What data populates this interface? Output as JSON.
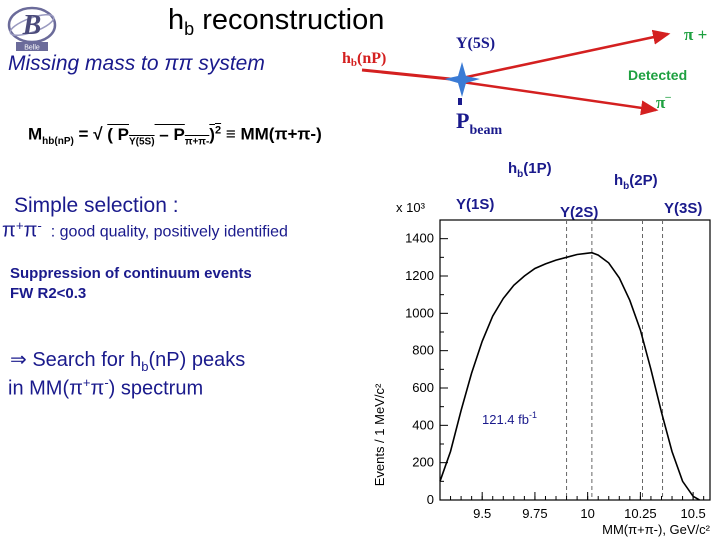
{
  "slide": {
    "title_main": "h",
    "title_sub": "b",
    "title_rest": " reconstruction",
    "subtitle": "Missing mass to ππ system",
    "formula": {
      "lhs_main": "M",
      "lhs_sub": "hb(nP)",
      "eq": " = √ ",
      "p1": "( P",
      "p1_sub": "Υ(5S)",
      "minus": " – P",
      "p2_sub": "π+π-",
      "close": ")",
      "exp": "2",
      "equiv": " ≡ MM(π+π-)"
    },
    "selection_title": "Simple selection :",
    "pp_main": "π",
    "pp_sup1": "+",
    "pp_main2": "π",
    "pp_sup2": "-",
    "pp_desc": ": good quality, positively identified",
    "suppression_1": "Suppression of continuum events",
    "suppression_2": "FW R2<0.3",
    "search_1a": "⇒ Search for h",
    "search_1b": "b",
    "search_1c": "(nP) peaks",
    "search_2a": "in MM(π",
    "search_2b": "+",
    "search_2c": "π",
    "search_2d": "-",
    "search_2e": ") spectrum"
  },
  "logo": {
    "text": "Belle"
  },
  "diagram": {
    "upsilon5s": "Υ(5S)",
    "hb_main": "h",
    "hb_sub": "b",
    "hb_rest": "(nP)",
    "pi_plus": "π +",
    "detected": "Detected",
    "pi_minus": "π",
    "pi_minus_sup": "–",
    "pbeam_main": "P",
    "pbeam_sub": "beam",
    "colors": {
      "arrows": "#d42020",
      "detected": "#1ea040",
      "labels": "#1a1a8c"
    }
  },
  "peak_labels": {
    "hb1p_main": "h",
    "hb1p_sub": "b",
    "hb1p_rest": "(1P)",
    "hb2p_main": "h",
    "hb2p_sub": "b",
    "hb2p_rest": "(2P)",
    "y1s": "Υ(1S)",
    "y2s": "Υ(2S)",
    "y3s": "Υ(3S)"
  },
  "chart_data": {
    "type": "line",
    "xlabel": "MM(π+π-), GeV/c²",
    "ylabel": "Events / 1 MeV/c²",
    "y_multiplier": "x 10³",
    "exponent": "3",
    "xlim": [
      9.3,
      10.58
    ],
    "ylim": [
      0,
      1500
    ],
    "x_ticks": [
      "9.5",
      "9.75",
      "10",
      "10.25",
      "10.5"
    ],
    "x_tick_values": [
      9.5,
      9.75,
      10.0,
      10.25,
      10.5
    ],
    "y_ticks": [
      "0",
      "200",
      "400",
      "600",
      "800",
      "1000",
      "1200",
      "1400"
    ],
    "y_tick_values": [
      0,
      200,
      400,
      600,
      800,
      1000,
      1200,
      1400
    ],
    "series": [
      {
        "x": [
          9.3,
          9.35,
          9.4,
          9.45,
          9.5,
          9.55,
          9.6,
          9.65,
          9.7,
          9.75,
          9.8,
          9.85,
          9.9,
          9.95,
          10.0,
          10.02,
          10.05,
          10.1,
          10.15,
          10.2,
          10.25,
          10.3,
          10.35,
          10.4,
          10.45,
          10.5,
          10.53
        ],
        "y": [
          100,
          260,
          480,
          680,
          850,
          985,
          1080,
          1150,
          1200,
          1240,
          1265,
          1285,
          1300,
          1315,
          1322,
          1325,
          1312,
          1270,
          1190,
          1070,
          910,
          700,
          470,
          260,
          100,
          20,
          0
        ]
      }
    ],
    "dashed_lines_x": [
      9.9,
      10.02,
      10.26,
      10.355
    ],
    "annotation": "121.4 fb⁻¹",
    "annotation_main": "121.4 fb",
    "annotation_sup": "-1"
  }
}
